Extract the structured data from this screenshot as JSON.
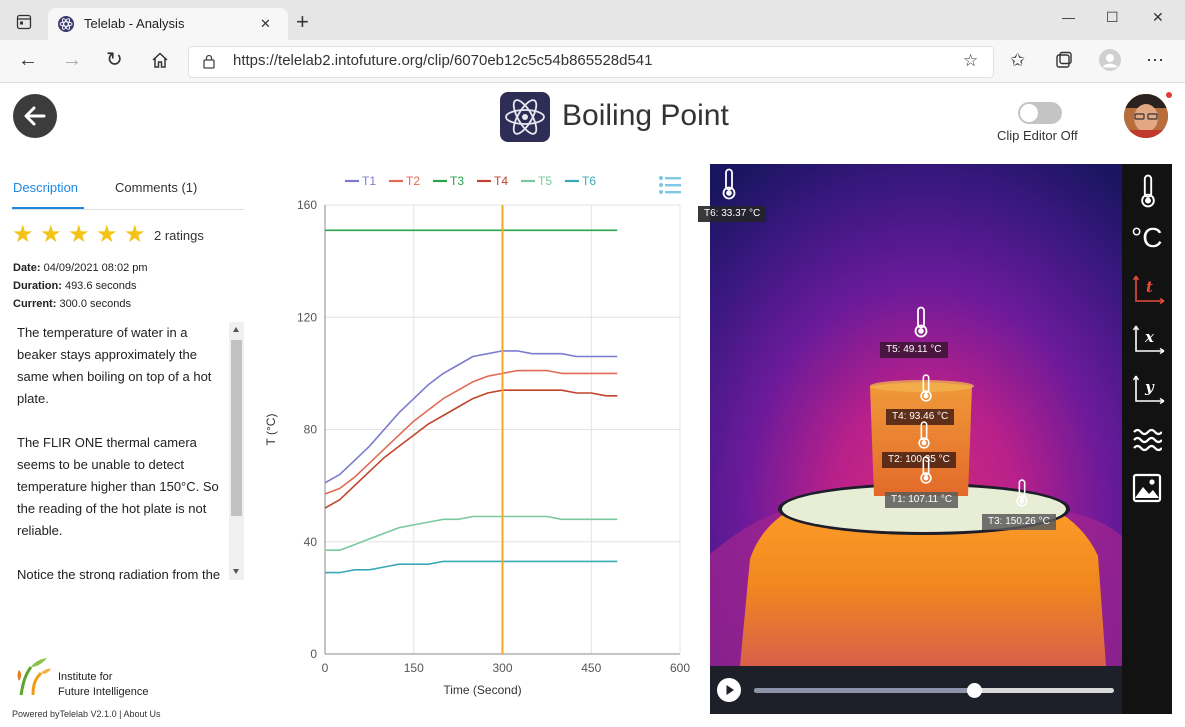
{
  "browser": {
    "tab_title": "Telelab - Analysis",
    "new_tab": "+",
    "url": "https://telelab2.intofuture.org/clip/6070eb12c5c54b865528d541",
    "window_controls": {
      "minimize": "—",
      "maximize": "☐",
      "close": "✕"
    }
  },
  "header": {
    "title": "Boiling Point",
    "clip_editor_label": "Clip Editor Off"
  },
  "left": {
    "tabs": [
      {
        "label": "Description"
      },
      {
        "label": "Comments (1)"
      }
    ],
    "ratings": "2 ratings",
    "meta": {
      "date_label": "Date:",
      "date_value": " 04/09/2021 08:02 pm",
      "duration_label": "Duration:",
      "duration_value": " 493.6 seconds",
      "current_label": "Current:",
      "current_value": " 300.0 seconds"
    },
    "paragraphs": [
      "The temperature of water in a beaker stays approximately the same when boiling on top of a hot plate.",
      "The FLIR ONE thermal camera seems to be unable to detect temperature higher than 150°C. So the reading of the hot plate is not reliable.",
      "Notice the strong radiation from the"
    ],
    "org_name_line1": "Institute for",
    "org_name_line2": "Future Intelligence",
    "footer_powered": "Powered byTelelab V2.1.0",
    "footer_sep": "|",
    "footer_about": "About Us"
  },
  "chart_data": {
    "type": "line",
    "xlabel": "Time (Second)",
    "ylabel": "T (°C)",
    "xlim": [
      0,
      600
    ],
    "ylim": [
      0,
      160
    ],
    "xticks": [
      0,
      150,
      300,
      450,
      600
    ],
    "yticks": [
      0,
      40,
      80,
      120,
      160
    ],
    "grid": true,
    "legend_position": "top",
    "cursor_x": 300,
    "cursor_color": "#f5a623",
    "x": [
      0,
      25,
      50,
      75,
      100,
      125,
      150,
      175,
      200,
      225,
      250,
      275,
      300,
      325,
      350,
      375,
      400,
      425,
      450,
      475,
      494
    ],
    "series": [
      {
        "name": "T1",
        "color": "#7c7ccf",
        "values": [
          61,
          64,
          69,
          74,
          80,
          86,
          91,
          96,
          100,
          103,
          106,
          107,
          108,
          108,
          107,
          107,
          107,
          106,
          106,
          106,
          106
        ]
      },
      {
        "name": "T2",
        "color": "#e26a55",
        "values": [
          57,
          59,
          63,
          68,
          73,
          78,
          83,
          87,
          91,
          94,
          97,
          99,
          100,
          101,
          101,
          101,
          100,
          100,
          100,
          100,
          100
        ]
      },
      {
        "name": "T3",
        "color": "#2aa34a",
        "values": [
          151,
          151,
          151,
          151,
          151,
          151,
          151,
          151,
          151,
          151,
          151,
          151,
          151,
          151,
          151,
          151,
          151,
          151,
          151,
          151,
          151
        ]
      },
      {
        "name": "T4",
        "color": "#c0442b",
        "values": [
          52,
          55,
          60,
          65,
          70,
          74,
          78,
          82,
          85,
          88,
          91,
          93,
          94,
          94,
          94,
          94,
          94,
          93,
          93,
          92,
          92
        ]
      },
      {
        "name": "T5",
        "color": "#7cc9a0",
        "values": [
          37,
          37,
          39,
          41,
          43,
          45,
          46,
          47,
          48,
          48,
          49,
          49,
          49,
          49,
          49,
          49,
          48,
          48,
          48,
          48,
          48
        ]
      },
      {
        "name": "T6",
        "color": "#3aa9b5",
        "values": [
          29,
          29,
          30,
          30,
          31,
          32,
          32,
          32,
          33,
          33,
          33,
          33,
          33,
          33,
          33,
          33,
          33,
          33,
          33,
          33,
          33
        ]
      }
    ]
  },
  "thermal": {
    "readings": {
      "t6": "T6: 33.37 °C",
      "t5": "T5: 49.11 °C",
      "t4": "T4: 93.46 °C",
      "t2": "T2: 100.35 °C",
      "t1": "T1: 107.11 °C",
      "t3": "T3: 150.26 °C"
    },
    "playback_progress": 0.61,
    "tools": [
      "thermometer-icon",
      "celsius-icon",
      "time-graph-icon",
      "x-graph-icon",
      "y-graph-icon",
      "heat-waves-icon",
      "image-icon"
    ],
    "tool_celsius_glyph": "°C"
  }
}
